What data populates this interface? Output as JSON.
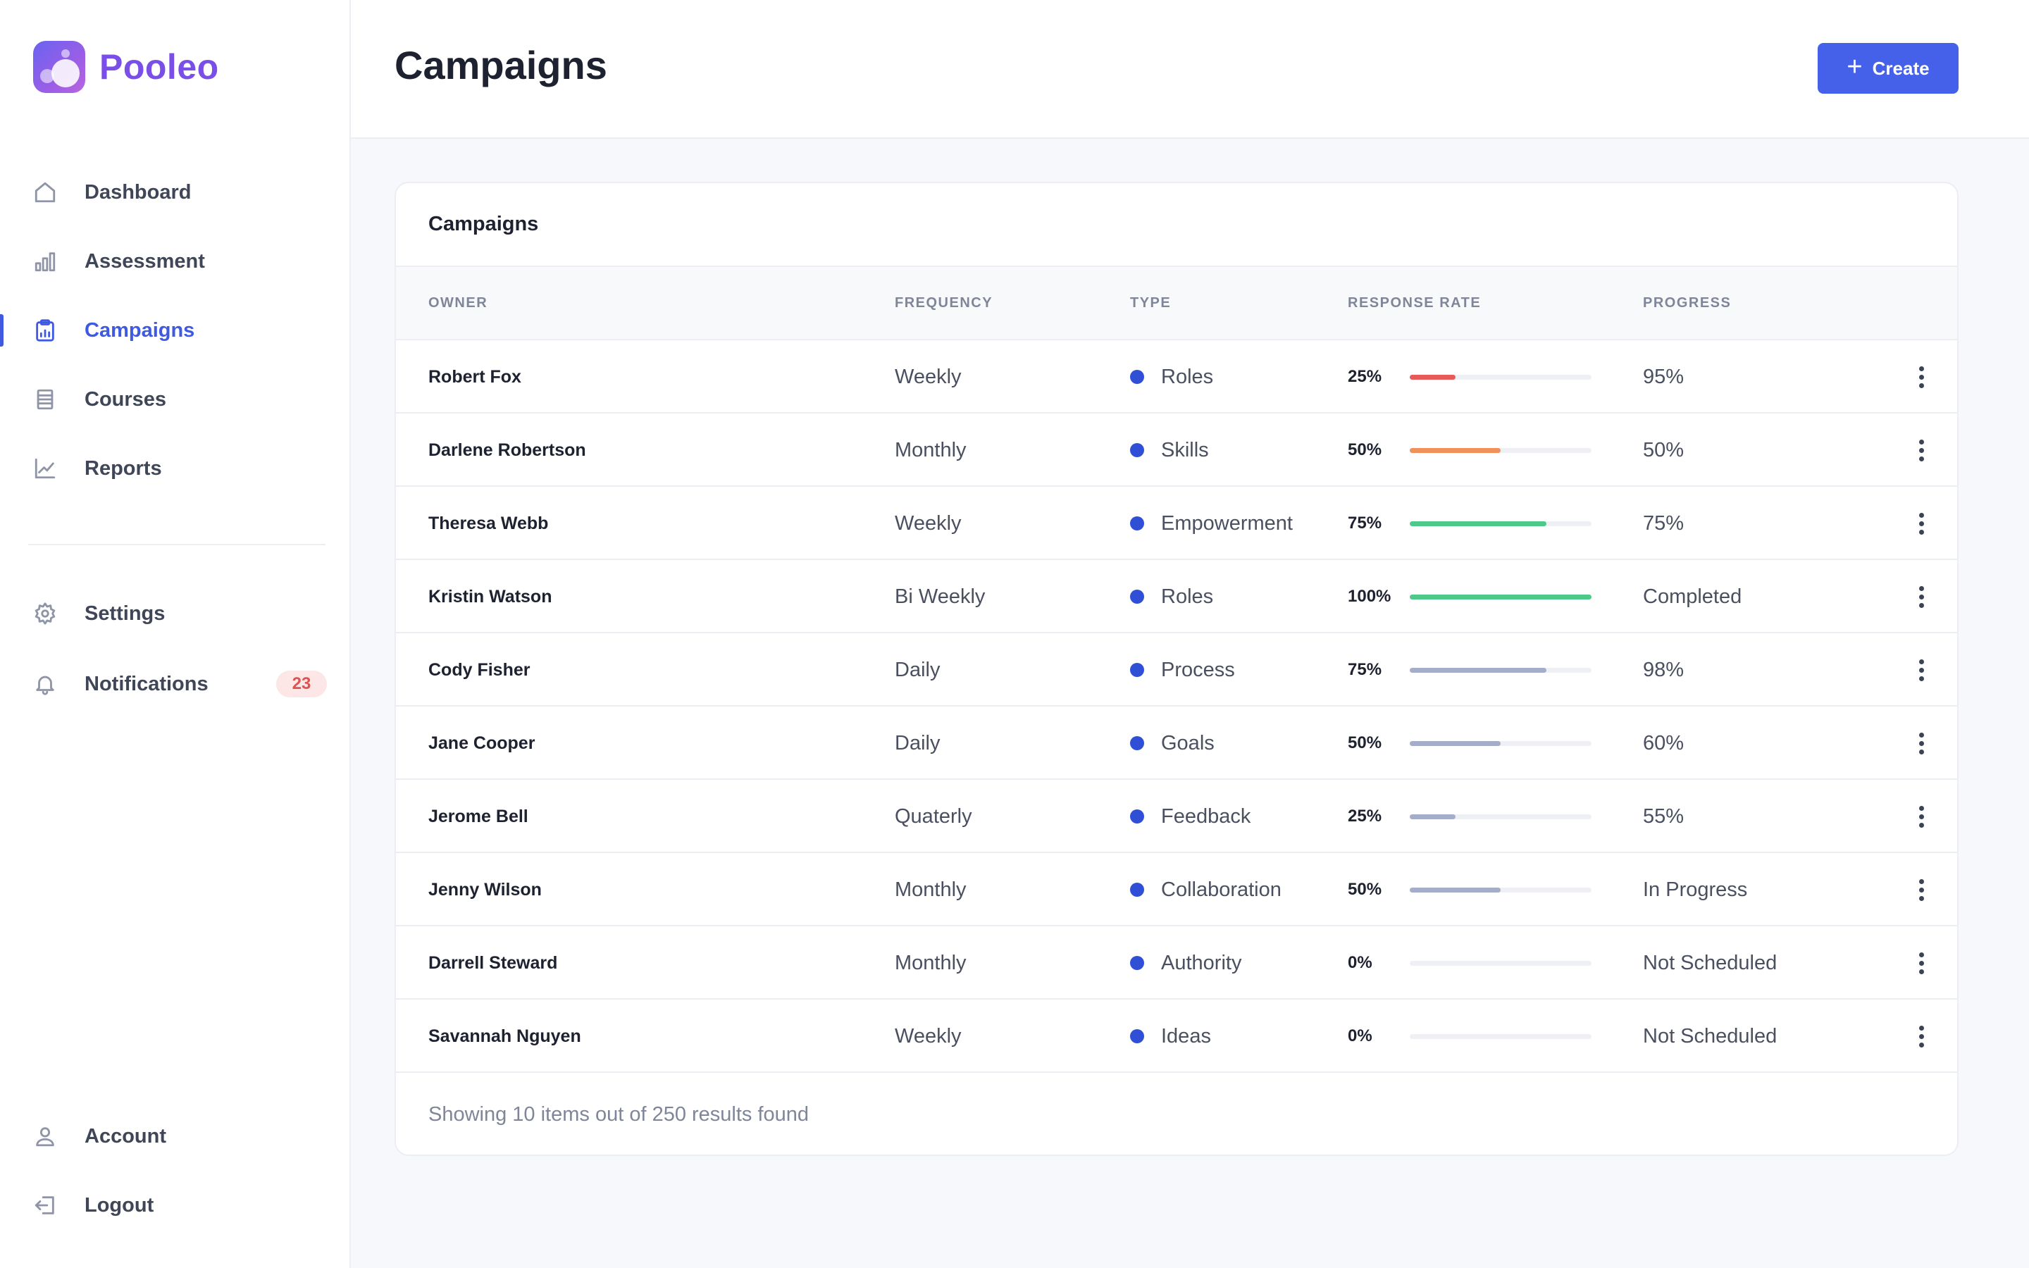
{
  "brand": {
    "name": "Pooleo"
  },
  "sidebar": {
    "items": [
      {
        "label": "Dashboard",
        "icon": "home-icon"
      },
      {
        "label": "Assessment",
        "icon": "bar-chart-icon"
      },
      {
        "label": "Campaigns",
        "icon": "clipboard-chart-icon",
        "active": true
      },
      {
        "label": "Courses",
        "icon": "list-icon"
      },
      {
        "label": "Reports",
        "icon": "trend-icon"
      }
    ],
    "secondary": [
      {
        "label": "Settings",
        "icon": "gear-icon"
      },
      {
        "label": "Notifications",
        "icon": "bell-icon",
        "badge": "23"
      }
    ],
    "bottom": [
      {
        "label": "Account",
        "icon": "user-icon"
      },
      {
        "label": "Logout",
        "icon": "logout-icon"
      }
    ]
  },
  "header": {
    "title": "Campaigns",
    "create_label": "Create"
  },
  "card": {
    "title": "Campaigns",
    "columns": [
      "OWNER",
      "FREQUENCY",
      "TYPE",
      "RESPONSE RATE",
      "PROGRESS"
    ],
    "rows": [
      {
        "owner": "Robert Fox",
        "frequency": "Weekly",
        "type": "Roles",
        "rate": "25%",
        "rate_value": 0.25,
        "bar_color": "#e85a5a",
        "progress": "95%"
      },
      {
        "owner": "Darlene Robertson",
        "frequency": "Monthly",
        "type": "Skills",
        "rate": "50%",
        "rate_value": 0.5,
        "bar_color": "#f0905a",
        "progress": "50%"
      },
      {
        "owner": "Theresa Webb",
        "frequency": "Weekly",
        "type": "Empowerment",
        "rate": "75%",
        "rate_value": 0.75,
        "bar_color": "#4fc98a",
        "progress": "75%"
      },
      {
        "owner": "Kristin Watson",
        "frequency": "Bi Weekly",
        "type": "Roles",
        "rate": "100%",
        "rate_value": 1.0,
        "bar_color": "#4fc98a",
        "progress": "Completed"
      },
      {
        "owner": "Cody Fisher",
        "frequency": "Daily",
        "type": "Process",
        "rate": "75%",
        "rate_value": 0.75,
        "bar_color": "#a4aec8",
        "progress": "98%"
      },
      {
        "owner": "Jane Cooper",
        "frequency": "Daily",
        "type": "Goals",
        "rate": "50%",
        "rate_value": 0.5,
        "bar_color": "#a4aec8",
        "progress": "60%"
      },
      {
        "owner": "Jerome Bell",
        "frequency": "Quaterly",
        "type": "Feedback",
        "rate": "25%",
        "rate_value": 0.25,
        "bar_color": "#a4aec8",
        "progress": "55%"
      },
      {
        "owner": "Jenny Wilson",
        "frequency": "Monthly",
        "type": "Collaboration",
        "rate": "50%",
        "rate_value": 0.5,
        "bar_color": "#a4aec8",
        "progress": "In Progress"
      },
      {
        "owner": "Darrell Steward",
        "frequency": "Monthly",
        "type": "Authority",
        "rate": "0%",
        "rate_value": 0.0,
        "bar_color": "#a4aec8",
        "progress": "Not Scheduled"
      },
      {
        "owner": "Savannah Nguyen",
        "frequency": "Weekly",
        "type": "Ideas",
        "rate": "0%",
        "rate_value": 0.0,
        "bar_color": "#a4aec8",
        "progress": "Not Scheduled"
      }
    ],
    "footer": "Showing 10 items out of 250 results found"
  },
  "colors": {
    "accent": "#4561ea",
    "brand": "#7a4fe8",
    "type_dot": "#2f4fd6",
    "badge_bg": "#fde6e6",
    "badge_text": "#e05252"
  }
}
